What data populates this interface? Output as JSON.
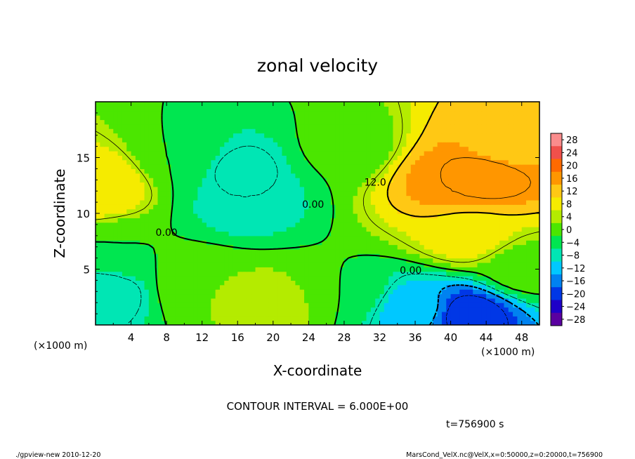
{
  "chart_data": {
    "type": "heatmap",
    "title": "zonal velocity",
    "xlabel": "X-coordinate",
    "ylabel": "Z-coordinate",
    "x_unit_label": "(×1000 m)",
    "y_unit_label": "(×1000 m)",
    "xlim": [
      0,
      50
    ],
    "ylim": [
      0,
      20
    ],
    "x_ticks": [
      4,
      8,
      12,
      16,
      20,
      24,
      28,
      32,
      36,
      40,
      44,
      48
    ],
    "y_ticks": [
      5,
      10,
      15
    ],
    "contour_interval_text": "CONTOUR INTERVAL = 6.000E+00",
    "time_text": "t=756900 s",
    "colorbar": {
      "levels": [
        28,
        24,
        20,
        16,
        12,
        8,
        4,
        0,
        -4,
        -8,
        -12,
        -16,
        -20,
        -24,
        -28
      ],
      "level_labels": [
        "28",
        "24",
        "20",
        "16",
        "12",
        "8",
        "4",
        "0",
        "−4",
        "−8",
        "−12",
        "−16",
        "−20",
        "−24",
        "−28"
      ],
      "colors": [
        "#fa8c8c",
        "#f0504b",
        "#ff6a00",
        "#ff9600",
        "#ffc814",
        "#f5eb00",
        "#b4eb00",
        "#4be600",
        "#00e650",
        "#00e6b4",
        "#00c8ff",
        "#0082f0",
        "#0037e6",
        "#1e00c8",
        "#5a00a0"
      ]
    },
    "contour_labels": [
      {
        "text": "0.00",
        "x": 8.0,
        "z": 8.0
      },
      {
        "text": "0.00",
        "x": 24.5,
        "z": 10.5
      },
      {
        "text": "12.0",
        "x": 31.5,
        "z": 12.5
      },
      {
        "text": "0.00",
        "x": 35.5,
        "z": 4.6
      }
    ],
    "field_sketch": [
      {
        "x": 0.5,
        "z": 12.5,
        "value": 12
      },
      {
        "x": 1.0,
        "z": 3.0,
        "value": -8
      },
      {
        "x": 3.0,
        "z": 6.5,
        "value": 0
      },
      {
        "x": 12.0,
        "z": 3.5,
        "value": 4
      },
      {
        "x": 16.0,
        "z": 14.0,
        "value": -7
      },
      {
        "x": 17.0,
        "z": 11.0,
        "value": -6
      },
      {
        "x": 20.0,
        "z": 2.0,
        "value": 6
      },
      {
        "x": 10.0,
        "z": 15.0,
        "value": 0
      },
      {
        "x": 28.0,
        "z": 16.0,
        "value": 1
      },
      {
        "x": 28.0,
        "z": 3.0,
        "value": 0
      },
      {
        "x": 40.0,
        "z": 13.0,
        "value": 18
      },
      {
        "x": 44.0,
        "z": 13.5,
        "value": 20
      },
      {
        "x": 46.0,
        "z": 16.0,
        "value": 14
      },
      {
        "x": 42.0,
        "z": 8.0,
        "value": 10
      },
      {
        "x": 42.0,
        "z": 1.0,
        "value": -20
      },
      {
        "x": 36.0,
        "z": 1.5,
        "value": -10
      },
      {
        "x": 48.0,
        "z": 5.0,
        "value": 2
      }
    ]
  },
  "footer": {
    "left": "./gpview-new  2010-12-20",
    "right": "MarsCond_VelX.nc@VelX,x=0:50000,z=0:20000,t=756900"
  }
}
